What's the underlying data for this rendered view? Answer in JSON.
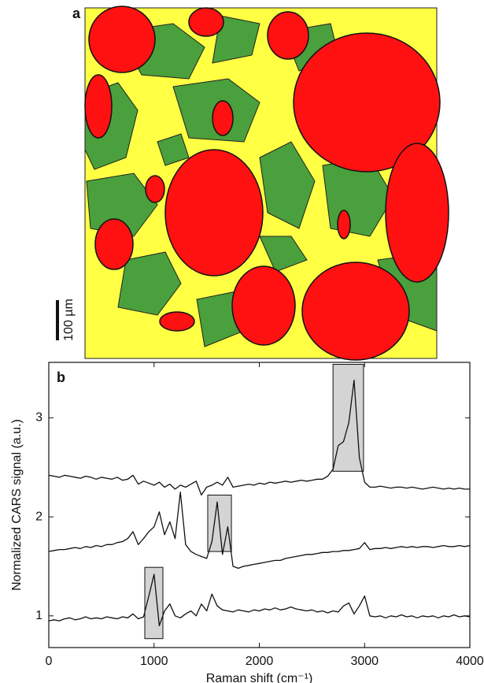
{
  "panel_a": {
    "label": "a",
    "scale_bar": "100 µm"
  },
  "chart_data": {
    "type": "line",
    "panel_label": "b",
    "xlabel": "Raman shift (cm⁻¹)",
    "ylabel": "Normalized CARS signal (a.u.)",
    "xlim": [
      0,
      4000
    ],
    "xticks": [
      0,
      1000,
      2000,
      3000,
      4000
    ],
    "ylim": [
      0.68,
      3.56
    ],
    "yticks": [
      1,
      2,
      3
    ],
    "highlight_regions": [
      {
        "x": [
          912,
          1084
        ],
        "y": [
          0.77,
          1.49
        ]
      },
      {
        "x": [
          1510,
          1735
        ],
        "y": [
          1.65,
          2.22
        ]
      },
      {
        "x": [
          2700,
          2990
        ],
        "y": [
          2.46,
          3.54
        ]
      }
    ],
    "x": [
      0,
      50,
      100,
      150,
      200,
      250,
      300,
      350,
      400,
      450,
      500,
      550,
      600,
      650,
      700,
      750,
      800,
      850,
      900,
      950,
      1000,
      1050,
      1100,
      1150,
      1200,
      1250,
      1300,
      1350,
      1400,
      1450,
      1500,
      1550,
      1600,
      1650,
      1700,
      1750,
      1800,
      1850,
      1900,
      1950,
      2000,
      2050,
      2100,
      2150,
      2200,
      2250,
      2300,
      2350,
      2400,
      2450,
      2500,
      2550,
      2600,
      2650,
      2700,
      2750,
      2800,
      2850,
      2900,
      2950,
      3000,
      3050,
      3100,
      3150,
      3200,
      3250,
      3300,
      3350,
      3400,
      3450,
      3500,
      3550,
      3600,
      3650,
      3700,
      3750,
      3800,
      3850,
      3900,
      3950,
      4000
    ],
    "series": [
      {
        "color": "#111111",
        "values": [
          0.95,
          0.96,
          0.95,
          0.97,
          0.98,
          0.96,
          0.97,
          0.99,
          0.97,
          0.98,
          0.97,
          0.99,
          0.98,
          0.97,
          0.99,
          0.98,
          1.02,
          0.97,
          0.99,
          1.2,
          1.42,
          0.9,
          1.05,
          1.12,
          1.0,
          0.98,
          1.02,
          1.05,
          1.0,
          1.12,
          1.05,
          1.22,
          1.1,
          1.06,
          1.05,
          1.04,
          1.06,
          1.05,
          1.04,
          1.06,
          1.05,
          1.07,
          1.06,
          1.08,
          1.06,
          1.07,
          1.09,
          1.07,
          1.06,
          1.05,
          1.06,
          1.04,
          1.05,
          1.03,
          1.05,
          1.04,
          1.1,
          1.13,
          1.02,
          1.1,
          1.2,
          1.0,
          0.99,
          1.0,
          0.98,
          1.0,
          0.99,
          1.01,
          0.99,
          1.0,
          0.98,
          1.0,
          0.99,
          1.0,
          0.98,
          1.0,
          0.99,
          1.01,
          0.99,
          1.0,
          0.99
        ]
      },
      {
        "color": "#111111",
        "values": [
          1.65,
          1.66,
          1.67,
          1.67,
          1.68,
          1.69,
          1.68,
          1.7,
          1.69,
          1.71,
          1.7,
          1.72,
          1.72,
          1.74,
          1.75,
          1.78,
          1.85,
          1.72,
          1.78,
          1.85,
          1.9,
          2.05,
          1.82,
          1.95,
          1.78,
          2.25,
          1.72,
          1.65,
          1.62,
          1.6,
          1.58,
          1.75,
          2.15,
          1.62,
          1.9,
          1.5,
          1.48,
          1.5,
          1.51,
          1.52,
          1.53,
          1.54,
          1.55,
          1.56,
          1.56,
          1.58,
          1.59,
          1.6,
          1.61,
          1.62,
          1.62,
          1.63,
          1.64,
          1.64,
          1.65,
          1.65,
          1.66,
          1.66,
          1.67,
          1.68,
          1.74,
          1.67,
          1.68,
          1.68,
          1.69,
          1.68,
          1.69,
          1.7,
          1.69,
          1.7,
          1.69,
          1.7,
          1.7,
          1.69,
          1.7,
          1.71,
          1.7,
          1.7,
          1.71,
          1.7,
          1.71
        ]
      },
      {
        "color": "#111111",
        "values": [
          2.42,
          2.41,
          2.4,
          2.42,
          2.41,
          2.4,
          2.39,
          2.41,
          2.4,
          2.38,
          2.4,
          2.39,
          2.38,
          2.4,
          2.37,
          2.38,
          2.42,
          2.33,
          2.36,
          2.34,
          2.32,
          2.35,
          2.3,
          2.33,
          2.28,
          2.32,
          2.3,
          2.33,
          2.36,
          2.22,
          2.3,
          2.32,
          2.35,
          2.32,
          2.4,
          2.3,
          2.31,
          2.32,
          2.33,
          2.32,
          2.34,
          2.33,
          2.35,
          2.34,
          2.35,
          2.36,
          2.35,
          2.36,
          2.37,
          2.36,
          2.37,
          2.38,
          2.38,
          2.41,
          2.48,
          2.72,
          2.76,
          2.95,
          3.38,
          2.6,
          2.35,
          2.3,
          2.3,
          2.31,
          2.3,
          2.29,
          2.3,
          2.3,
          2.29,
          2.3,
          2.29,
          2.28,
          2.29,
          2.3,
          2.29,
          2.28,
          2.29,
          2.28,
          2.29,
          2.28,
          2.28
        ]
      }
    ]
  }
}
